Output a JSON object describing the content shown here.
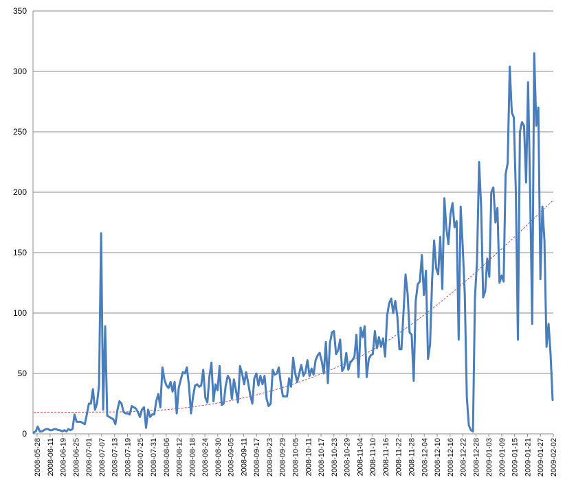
{
  "chart_data": {
    "type": "line",
    "title": "",
    "xlabel": "",
    "ylabel": "",
    "ylim": [
      0,
      350
    ],
    "yticks": [
      0,
      50,
      100,
      150,
      200,
      250,
      300,
      350
    ],
    "grid": "horizontal",
    "legend": "none",
    "x_tick_labels": [
      "2008-05-28",
      "2008-06-11",
      "2008-06-19",
      "2008-06-25",
      "2008-07-01",
      "2008-07-07",
      "2008-07-13",
      "2008-07-19",
      "2008-07-25",
      "2008-07-31",
      "2008-08-06",
      "2008-08-12",
      "2008-08-18",
      "2008-08-24",
      "2008-08-30",
      "2008-09-05",
      "2008-09-11",
      "2008-09-17",
      "2008-09-23",
      "2008-09-29",
      "2008-10-05",
      "2008-10-11",
      "2008-10-17",
      "2008-10-23",
      "2008-10-29",
      "2008-11-04",
      "2008-11-10",
      "2008-11-16",
      "2008-11-22",
      "2008-11-28",
      "2008-12-04",
      "2008-12-10",
      "2008-12-16",
      "2008-12-22",
      "2008-12-28",
      "2009-01-03",
      "2009-01-09",
      "2009-01-15",
      "2009-01-21",
      "2009-01-27",
      "2009-02-02"
    ],
    "series": [
      {
        "color": "#4a7ebb",
        "values": [
          1,
          2,
          6,
          2,
          2,
          3,
          4,
          4,
          3,
          3,
          4,
          4,
          3,
          3,
          2,
          3,
          2,
          4,
          3,
          4,
          16,
          10,
          10,
          10,
          9,
          8,
          16,
          25,
          25,
          37,
          20,
          25,
          40,
          166,
          20,
          89,
          15,
          14,
          13,
          12,
          8,
          20,
          27,
          25,
          18,
          17,
          17,
          16,
          23,
          22,
          21,
          18,
          14,
          20,
          22,
          5,
          20,
          14,
          16,
          16,
          27,
          33,
          22,
          55,
          45,
          40,
          38,
          43,
          35,
          43,
          17,
          38,
          45,
          51,
          50,
          55,
          40,
          17,
          31,
          40,
          41,
          39,
          40,
          53,
          30,
          26,
          47,
          59,
          27,
          41,
          36,
          56,
          24,
          25,
          40,
          48,
          45,
          29,
          45,
          36,
          26,
          56,
          50,
          41,
          51,
          42,
          32,
          25,
          46,
          50,
          40,
          48,
          41,
          48,
          29,
          23,
          25,
          53,
          49,
          50,
          55,
          41,
          31,
          31,
          31,
          46,
          39,
          63,
          50,
          43,
          50,
          57,
          48,
          51,
          61,
          48,
          54,
          49,
          61,
          65,
          67,
          60,
          50,
          76,
          42,
          75,
          84,
          85,
          66,
          69,
          78,
          52,
          55,
          67,
          53,
          59,
          61,
          64,
          82,
          47,
          88,
          80,
          89,
          47,
          62,
          65,
          66,
          85,
          71,
          80,
          72,
          79,
          64,
          98,
          108,
          112,
          100,
          110,
          97,
          70,
          70,
          100,
          132,
          116,
          84,
          82,
          44,
          110,
          124,
          126,
          148,
          115,
          135,
          62,
          74,
          126,
          160,
          137,
          132,
          163,
          120,
          195,
          170,
          157,
          182,
          191,
          171,
          176,
          78,
          188,
          155,
          115,
          30,
          7,
          3,
          2,
          113,
          143,
          225,
          188,
          113,
          118,
          145,
          130,
          200,
          204,
          175,
          187,
          125,
          131,
          126,
          215,
          224,
          304,
          266,
          262,
          200,
          78,
          250,
          258,
          255,
          208,
          291,
          200,
          91,
          315,
          255,
          270,
          128,
          188,
          160,
          72,
          91,
          66,
          28
        ]
      }
    ],
    "trendline": {
      "type": "polynomial",
      "color": "#c0504d",
      "style": "dashed",
      "values": [
        18,
        18,
        19,
        24,
        34,
        50,
        73,
        107,
        148,
        193
      ]
    }
  }
}
